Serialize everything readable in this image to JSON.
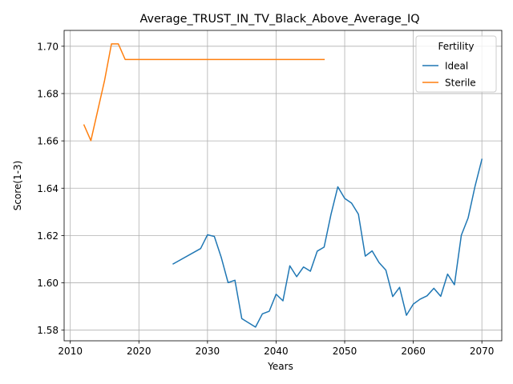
{
  "chart_data": {
    "type": "line",
    "title": "Average_TRUST_IN_TV_Black_Above_Average_IQ",
    "xlabel": "Years",
    "ylabel": "Score(1-3)",
    "xlim": [
      2009.1,
      2072.9
    ],
    "ylim": [
      1.5755,
      1.7067
    ],
    "xticks": [
      2010,
      2020,
      2030,
      2040,
      2050,
      2060,
      2070
    ],
    "yticks": [
      1.58,
      1.6,
      1.62,
      1.64,
      1.66,
      1.68,
      1.7
    ],
    "ytick_labels": [
      "1.58",
      "1.60",
      "1.62",
      "1.64",
      "1.66",
      "1.68",
      "1.70"
    ],
    "grid": true,
    "legend": {
      "title": "Fertility",
      "position": "top-right"
    },
    "series": [
      {
        "name": "Ideal",
        "color": "#1f77b4",
        "x": [
          2025,
          2029,
          2030,
          2031,
          2032,
          2033,
          2034,
          2035,
          2037,
          2038,
          2039,
          2040,
          2041,
          2042,
          2043,
          2044,
          2045,
          2046,
          2047,
          2048,
          2049,
          2050,
          2051,
          2052,
          2053,
          2054,
          2055,
          2056,
          2057,
          2058,
          2059,
          2060,
          2061,
          2062,
          2063,
          2064,
          2065,
          2066,
          2067,
          2068,
          2069,
          2070
        ],
        "y": [
          1.608,
          1.6145,
          1.6203,
          1.6196,
          1.6108,
          1.6001,
          1.6011,
          1.5849,
          1.5813,
          1.5869,
          1.588,
          1.5952,
          1.5924,
          1.6072,
          1.6026,
          1.6067,
          1.6049,
          1.6134,
          1.6151,
          1.6289,
          1.6406,
          1.6357,
          1.6337,
          1.629,
          1.6113,
          1.6135,
          1.6086,
          1.6054,
          1.5942,
          1.5981,
          1.5863,
          1.591,
          1.5931,
          1.5945,
          1.5977,
          1.5943,
          1.6037,
          1.5992,
          1.6201,
          1.6275,
          1.6408,
          1.6522
        ]
      },
      {
        "name": "Sterile",
        "color": "#ff7f0e",
        "x": [
          2012,
          2013,
          2015,
          2016,
          2017,
          2018,
          2019,
          2047
        ],
        "y": [
          1.6667,
          1.6601,
          1.6856,
          1.701,
          1.701,
          1.6944,
          1.6944,
          1.6944
        ]
      }
    ]
  }
}
